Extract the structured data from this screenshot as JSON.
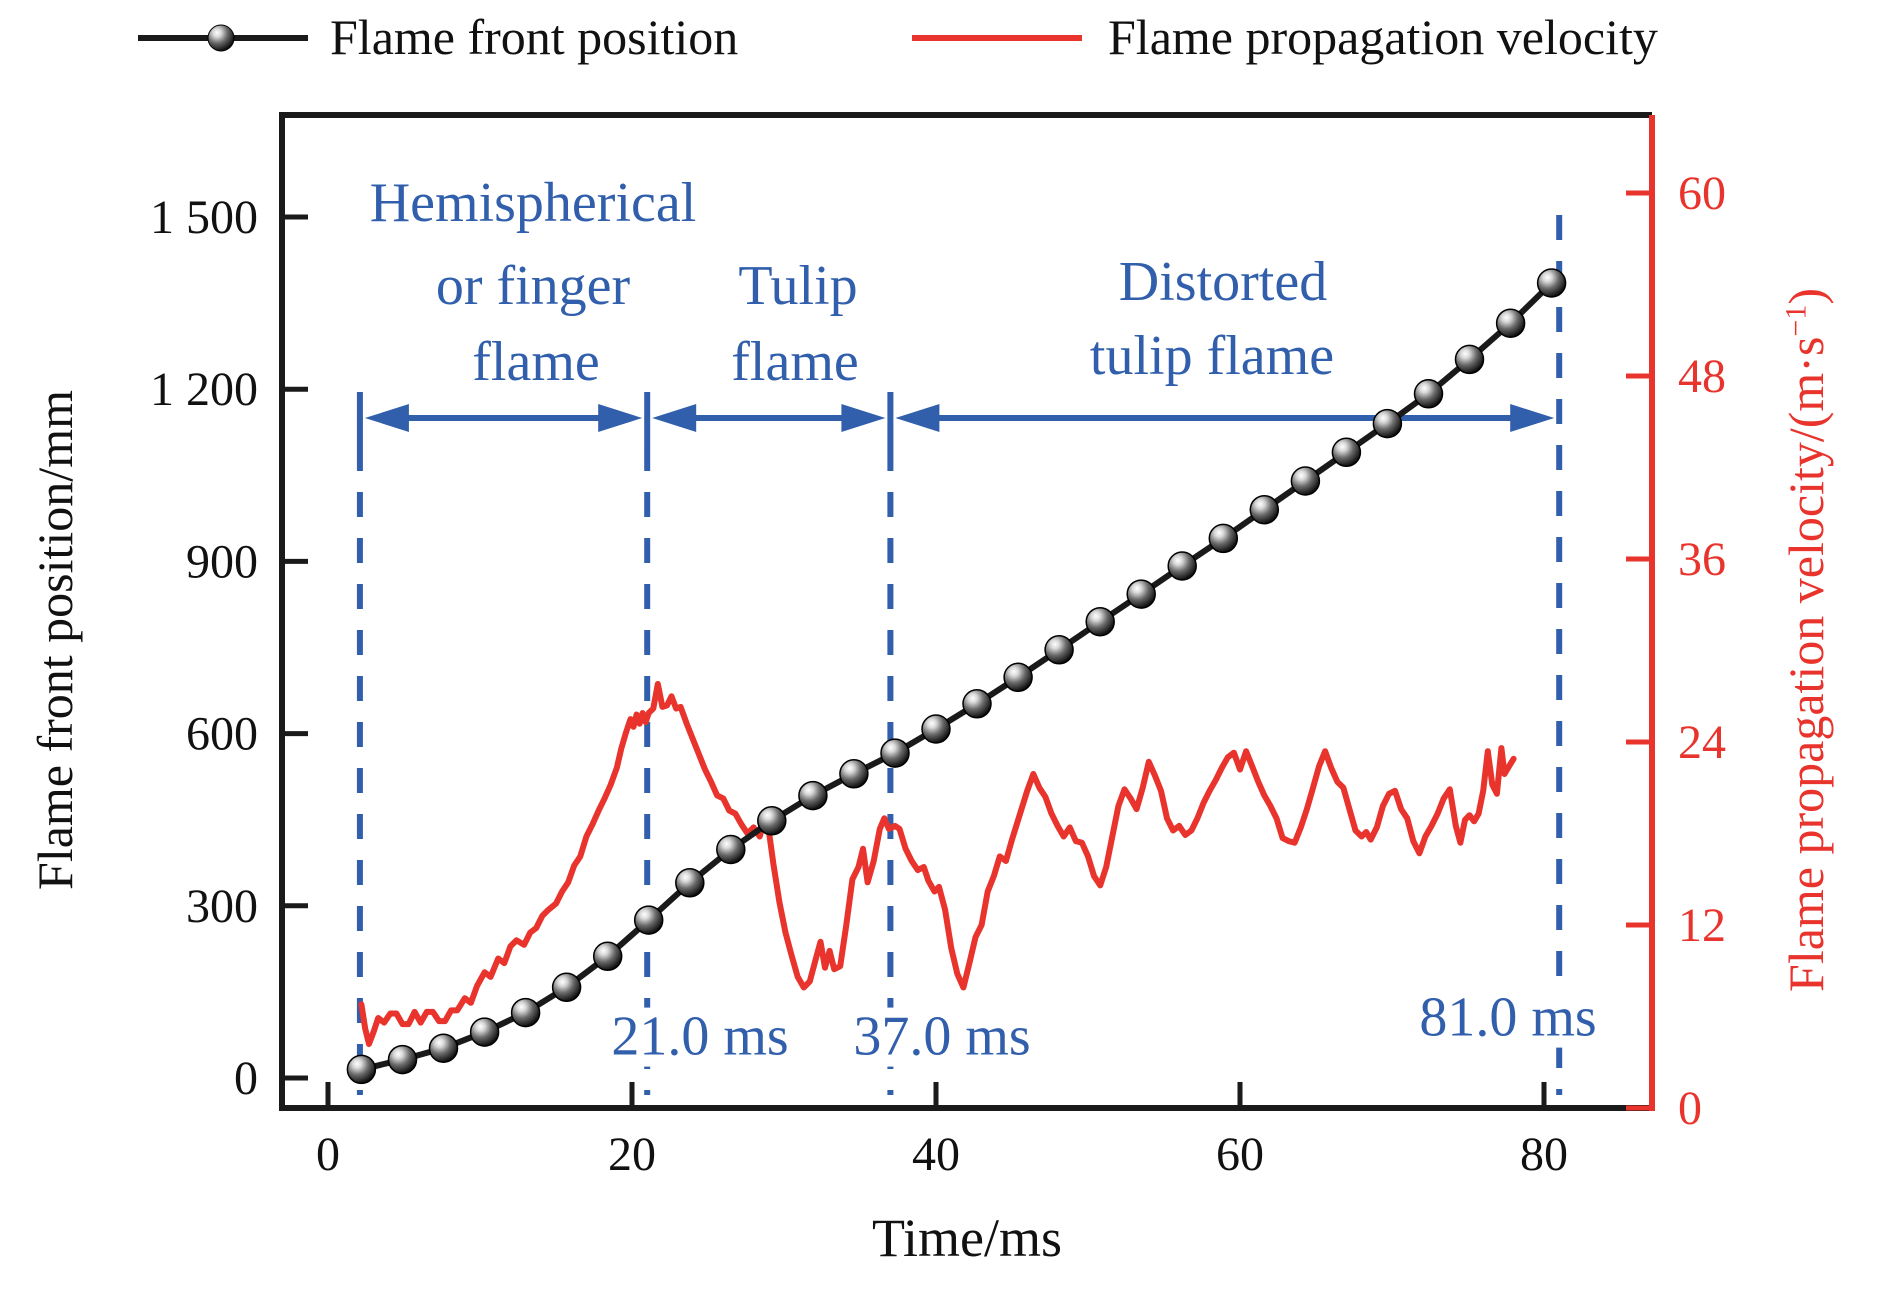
{
  "legend": {
    "flame_front": "Flame front position",
    "flame_velocity": "Flame propagation velocity"
  },
  "colors": {
    "series_position": "#1a1a1a",
    "series_velocity": "#e8342c",
    "annotation_blue": "#315fac"
  },
  "annotations": {
    "phase1_line1": "Hemispherical",
    "phase1_line2": "or finger",
    "phase1_line3": "flame",
    "phase2_line1": "Tulip",
    "phase2_line2": "flame",
    "phase3_line1": "Distorted",
    "phase3_line2": "tulip flame",
    "time1": "21.0 ms",
    "time2": "37.0 ms",
    "time3": "81.0 ms"
  },
  "chart_data": {
    "type": "line",
    "title": "",
    "xlabel": "Time/ms",
    "x_ticks": {
      "values": [
        0,
        20,
        40,
        60,
        80
      ],
      "labels": [
        "0",
        "20",
        "40",
        "60",
        "80"
      ]
    },
    "x_range": [
      -3,
      87.1
    ],
    "y_left": {
      "label": "Flame front position/mm",
      "tick_values": [
        0,
        300,
        600,
        900,
        1200,
        1500
      ],
      "tick_labels": [
        "0",
        "300",
        "600",
        "900",
        "1 200",
        "1 500"
      ],
      "range": [
        -52,
        1678
      ]
    },
    "y_right": {
      "label": "Flame propagation velocity/(m·s⁻¹)",
      "tick_values": [
        0,
        12,
        24,
        36,
        48,
        60
      ],
      "tick_labels": [
        "0",
        "12",
        "24",
        "36",
        "48",
        "60"
      ],
      "range": [
        0,
        65.1
      ]
    },
    "grid": false,
    "legend_position": "top",
    "phase_boundaries_ms": [
      2.1,
      21.0,
      37.0,
      81.0
    ],
    "series": [
      {
        "name": "Flame front position",
        "axis": "left",
        "color": "#1a1a1a",
        "marker": "sphere",
        "points": [
          [
            2.2,
            15
          ],
          [
            4.9,
            32
          ],
          [
            7.6,
            52
          ],
          [
            10.3,
            80
          ],
          [
            13.0,
            114
          ],
          [
            15.7,
            158
          ],
          [
            18.4,
            212
          ],
          [
            21.1,
            275
          ],
          [
            23.8,
            340
          ],
          [
            26.5,
            398
          ],
          [
            29.2,
            448
          ],
          [
            31.9,
            492
          ],
          [
            34.6,
            530
          ],
          [
            37.3,
            566
          ],
          [
            40.0,
            608
          ],
          [
            42.7,
            652
          ],
          [
            45.4,
            698
          ],
          [
            48.1,
            746
          ],
          [
            50.8,
            795
          ],
          [
            53.5,
            843
          ],
          [
            56.2,
            892
          ],
          [
            58.9,
            940
          ],
          [
            61.6,
            990
          ],
          [
            64.3,
            1040
          ],
          [
            67.0,
            1090
          ],
          [
            69.7,
            1140
          ],
          [
            72.4,
            1192
          ],
          [
            75.1,
            1252
          ],
          [
            77.8,
            1315
          ],
          [
            80.5,
            1385
          ]
        ]
      },
      {
        "name": "Flame propagation velocity",
        "axis": "right",
        "color": "#e8342c",
        "marker": "none",
        "points": [
          [
            2.2,
            6.8
          ],
          [
            2.45,
            5.2
          ],
          [
            2.7,
            4.2
          ],
          [
            3.0,
            5.0
          ],
          [
            3.3,
            5.9
          ],
          [
            3.7,
            5.6
          ],
          [
            4.1,
            6.2
          ],
          [
            4.5,
            6.2
          ],
          [
            4.9,
            5.5
          ],
          [
            5.3,
            5.5
          ],
          [
            5.7,
            6.3
          ],
          [
            6.1,
            5.6
          ],
          [
            6.5,
            6.3
          ],
          [
            6.9,
            6.3
          ],
          [
            7.3,
            5.7
          ],
          [
            7.7,
            5.7
          ],
          [
            8.1,
            6.4
          ],
          [
            8.5,
            6.4
          ],
          [
            9.0,
            7.2
          ],
          [
            9.4,
            6.9
          ],
          [
            9.8,
            8.0
          ],
          [
            10.3,
            8.9
          ],
          [
            10.7,
            8.6
          ],
          [
            11.2,
            9.8
          ],
          [
            11.6,
            9.5
          ],
          [
            12.0,
            10.6
          ],
          [
            12.4,
            11.0
          ],
          [
            12.9,
            10.7
          ],
          [
            13.3,
            11.5
          ],
          [
            13.7,
            11.8
          ],
          [
            14.1,
            12.6
          ],
          [
            14.5,
            13.0
          ],
          [
            15.0,
            13.4
          ],
          [
            15.4,
            14.2
          ],
          [
            15.8,
            14.8
          ],
          [
            16.2,
            15.9
          ],
          [
            16.6,
            16.5
          ],
          [
            17.0,
            17.8
          ],
          [
            17.4,
            18.6
          ],
          [
            17.8,
            19.5
          ],
          [
            18.2,
            20.3
          ],
          [
            18.6,
            21.2
          ],
          [
            19.0,
            22.3
          ],
          [
            19.3,
            23.6
          ],
          [
            19.6,
            24.6
          ],
          [
            19.9,
            25.5
          ],
          [
            20.1,
            25.0
          ],
          [
            20.3,
            25.8
          ],
          [
            20.5,
            25.2
          ],
          [
            20.7,
            25.9
          ],
          [
            20.9,
            25.3
          ],
          [
            21.1,
            25.9
          ],
          [
            21.4,
            26.2
          ],
          [
            21.7,
            27.8
          ],
          [
            22.0,
            26.3
          ],
          [
            22.3,
            26.4
          ],
          [
            22.6,
            27.0
          ],
          [
            22.9,
            26.2
          ],
          [
            23.2,
            26.3
          ],
          [
            23.6,
            25.2
          ],
          [
            24.0,
            24.2
          ],
          [
            24.4,
            23.2
          ],
          [
            24.8,
            22.2
          ],
          [
            25.2,
            21.4
          ],
          [
            25.6,
            20.5
          ],
          [
            26.0,
            20.3
          ],
          [
            26.4,
            19.5
          ],
          [
            26.8,
            19.3
          ],
          [
            27.2,
            18.6
          ],
          [
            27.6,
            18.0
          ],
          [
            28.0,
            18.4
          ],
          [
            28.4,
            17.8
          ],
          [
            28.7,
            18.9
          ],
          [
            29.0,
            18.2
          ],
          [
            29.3,
            16.0
          ],
          [
            29.7,
            13.5
          ],
          [
            30.1,
            11.5
          ],
          [
            30.5,
            10.0
          ],
          [
            30.9,
            8.6
          ],
          [
            31.3,
            7.9
          ],
          [
            31.7,
            8.3
          ],
          [
            32.1,
            9.8
          ],
          [
            32.4,
            10.9
          ],
          [
            32.7,
            9.2
          ],
          [
            33.0,
            10.3
          ],
          [
            33.3,
            9.1
          ],
          [
            33.7,
            9.3
          ],
          [
            34.1,
            12.0
          ],
          [
            34.5,
            15.0
          ],
          [
            34.9,
            15.8
          ],
          [
            35.2,
            17.0
          ],
          [
            35.5,
            14.8
          ],
          [
            35.9,
            16.2
          ],
          [
            36.3,
            18.3
          ],
          [
            36.6,
            19.0
          ],
          [
            36.9,
            18.3
          ],
          [
            37.3,
            18.5
          ],
          [
            37.6,
            18.3
          ],
          [
            38.0,
            17.0
          ],
          [
            38.4,
            16.2
          ],
          [
            38.8,
            15.6
          ],
          [
            39.2,
            15.8
          ],
          [
            39.5,
            14.9
          ],
          [
            39.9,
            14.2
          ],
          [
            40.2,
            14.5
          ],
          [
            40.6,
            13.0
          ],
          [
            41.0,
            10.5
          ],
          [
            41.4,
            8.8
          ],
          [
            41.8,
            7.9
          ],
          [
            42.2,
            9.5
          ],
          [
            42.6,
            11.2
          ],
          [
            43.0,
            12.0
          ],
          [
            43.4,
            14.2
          ],
          [
            43.8,
            15.2
          ],
          [
            44.2,
            16.5
          ],
          [
            44.6,
            16.2
          ],
          [
            45.0,
            17.6
          ],
          [
            45.5,
            19.2
          ],
          [
            46.0,
            20.8
          ],
          [
            46.4,
            21.9
          ],
          [
            46.8,
            21.0
          ],
          [
            47.2,
            20.4
          ],
          [
            47.6,
            19.3
          ],
          [
            48.0,
            18.5
          ],
          [
            48.4,
            17.8
          ],
          [
            48.8,
            18.4
          ],
          [
            49.2,
            17.5
          ],
          [
            49.6,
            17.4
          ],
          [
            50.0,
            16.5
          ],
          [
            50.4,
            15.2
          ],
          [
            50.8,
            14.6
          ],
          [
            51.2,
            15.8
          ],
          [
            51.6,
            17.8
          ],
          [
            52.0,
            19.8
          ],
          [
            52.4,
            20.9
          ],
          [
            52.8,
            20.3
          ],
          [
            53.2,
            19.6
          ],
          [
            53.6,
            21.0
          ],
          [
            54.0,
            22.7
          ],
          [
            54.4,
            21.8
          ],
          [
            54.8,
            20.8
          ],
          [
            55.2,
            19.0
          ],
          [
            55.6,
            18.2
          ],
          [
            56.0,
            18.5
          ],
          [
            56.4,
            17.9
          ],
          [
            56.8,
            18.2
          ],
          [
            57.2,
            19.0
          ],
          [
            57.6,
            20.0
          ],
          [
            58.0,
            20.8
          ],
          [
            58.4,
            21.5
          ],
          [
            58.8,
            22.3
          ],
          [
            59.2,
            23.0
          ],
          [
            59.6,
            23.3
          ],
          [
            60.0,
            22.2
          ],
          [
            60.4,
            23.4
          ],
          [
            60.8,
            22.4
          ],
          [
            61.2,
            21.4
          ],
          [
            61.6,
            20.5
          ],
          [
            62.0,
            19.8
          ],
          [
            62.4,
            19.0
          ],
          [
            62.8,
            17.7
          ],
          [
            63.2,
            17.5
          ],
          [
            63.6,
            17.4
          ],
          [
            64.0,
            18.4
          ],
          [
            64.4,
            19.6
          ],
          [
            64.8,
            21.0
          ],
          [
            65.2,
            22.4
          ],
          [
            65.6,
            23.4
          ],
          [
            66.0,
            22.3
          ],
          [
            66.4,
            21.4
          ],
          [
            66.8,
            21.0
          ],
          [
            67.2,
            19.6
          ],
          [
            67.6,
            18.2
          ],
          [
            68.0,
            17.8
          ],
          [
            68.3,
            18.1
          ],
          [
            68.6,
            17.6
          ],
          [
            69.0,
            18.4
          ],
          [
            69.4,
            19.8
          ],
          [
            69.8,
            20.6
          ],
          [
            70.2,
            20.8
          ],
          [
            70.6,
            19.6
          ],
          [
            71.0,
            19.0
          ],
          [
            71.4,
            17.5
          ],
          [
            71.8,
            16.7
          ],
          [
            72.2,
            17.8
          ],
          [
            72.6,
            18.5
          ],
          [
            73.0,
            19.3
          ],
          [
            73.4,
            20.3
          ],
          [
            73.8,
            20.9
          ],
          [
            74.2,
            18.5
          ],
          [
            74.5,
            17.4
          ],
          [
            74.8,
            18.9
          ],
          [
            75.1,
            19.2
          ],
          [
            75.4,
            18.8
          ],
          [
            75.7,
            19.3
          ],
          [
            76.0,
            20.8
          ],
          [
            76.3,
            23.4
          ],
          [
            76.6,
            21.2
          ],
          [
            76.9,
            20.6
          ],
          [
            77.2,
            23.6
          ],
          [
            77.4,
            21.9
          ],
          [
            77.7,
            22.4
          ],
          [
            78.0,
            22.9
          ]
        ]
      }
    ]
  }
}
